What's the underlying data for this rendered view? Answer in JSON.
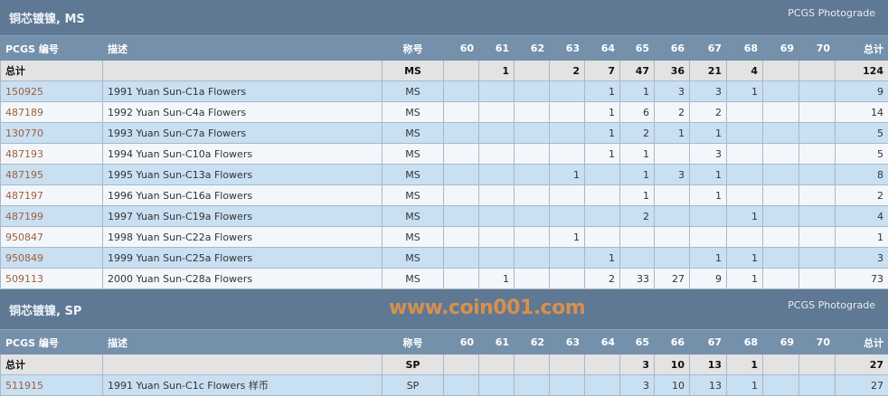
{
  "columns": [
    "PCGS 编号",
    "描述",
    "称号",
    "60",
    "61",
    "62",
    "63",
    "64",
    "65",
    "66",
    "67",
    "68",
    "69",
    "70",
    "总计"
  ],
  "sections": [
    {
      "title": "铜芯镀镍, MS",
      "photograde": "PCGS Photograde",
      "total": {
        "label": "总计",
        "designation": "MS",
        "grades": [
          "",
          "1",
          "",
          "2",
          "7",
          "47",
          "36",
          "21",
          "4",
          "",
          ""
        ],
        "total": "124"
      },
      "rows": [
        {
          "id": "150925",
          "desc": "1991 Yuan Sun-C1a Flowers",
          "designation": "MS",
          "grades": [
            "",
            "",
            "",
            "",
            "1",
            "1",
            "3",
            "3",
            "1",
            "",
            ""
          ],
          "total": "9"
        },
        {
          "id": "487189",
          "desc": "1992 Yuan Sun-C4a Flowers",
          "designation": "MS",
          "grades": [
            "",
            "",
            "",
            "",
            "1",
            "6",
            "2",
            "2",
            "",
            "",
            ""
          ],
          "total": "14"
        },
        {
          "id": "130770",
          "desc": "1993 Yuan Sun-C7a Flowers",
          "designation": "MS",
          "grades": [
            "",
            "",
            "",
            "",
            "1",
            "2",
            "1",
            "1",
            "",
            "",
            ""
          ],
          "total": "5"
        },
        {
          "id": "487193",
          "desc": "1994 Yuan Sun-C10a Flowers",
          "designation": "MS",
          "grades": [
            "",
            "",
            "",
            "",
            "1",
            "1",
            "",
            "3",
            "",
            "",
            ""
          ],
          "total": "5"
        },
        {
          "id": "487195",
          "desc": "1995 Yuan Sun-C13a Flowers",
          "designation": "MS",
          "grades": [
            "",
            "",
            "",
            "1",
            "",
            "1",
            "3",
            "1",
            "",
            "",
            ""
          ],
          "total": "8"
        },
        {
          "id": "487197",
          "desc": "1996 Yuan Sun-C16a Flowers",
          "designation": "MS",
          "grades": [
            "",
            "",
            "",
            "",
            "",
            "1",
            "",
            "1",
            "",
            "",
            ""
          ],
          "total": "2"
        },
        {
          "id": "487199",
          "desc": "1997 Yuan Sun-C19a Flowers",
          "designation": "MS",
          "grades": [
            "",
            "",
            "",
            "",
            "",
            "2",
            "",
            "",
            "1",
            "",
            ""
          ],
          "total": "4"
        },
        {
          "id": "950847",
          "desc": "1998 Yuan Sun-C22a Flowers",
          "designation": "MS",
          "grades": [
            "",
            "",
            "",
            "1",
            "",
            "",
            "",
            "",
            "",
            "",
            ""
          ],
          "total": "1"
        },
        {
          "id": "950849",
          "desc": "1999 Yuan Sun-C25a Flowers",
          "designation": "MS",
          "grades": [
            "",
            "",
            "",
            "",
            "1",
            "",
            "",
            "1",
            "1",
            "",
            ""
          ],
          "total": "3"
        },
        {
          "id": "509113",
          "desc": "2000 Yuan Sun-C28a Flowers",
          "designation": "MS",
          "grades": [
            "",
            "1",
            "",
            "",
            "2",
            "33",
            "27",
            "9",
            "1",
            "",
            ""
          ],
          "total": "73"
        }
      ]
    },
    {
      "title": "铜芯镀镍, SP",
      "photograde": "PCGS Photograde",
      "total": {
        "label": "总计",
        "designation": "SP",
        "grades": [
          "",
          "",
          "",
          "",
          "",
          "3",
          "10",
          "13",
          "1",
          "",
          ""
        ],
        "total": "27"
      },
      "rows": [
        {
          "id": "511915",
          "desc": "1991 Yuan Sun-C1c Flowers 样币",
          "designation": "SP",
          "grades": [
            "",
            "",
            "",
            "",
            "",
            "3",
            "10",
            "13",
            "1",
            "",
            ""
          ],
          "total": "27"
        }
      ]
    }
  ],
  "watermark": "www.coin001.com"
}
